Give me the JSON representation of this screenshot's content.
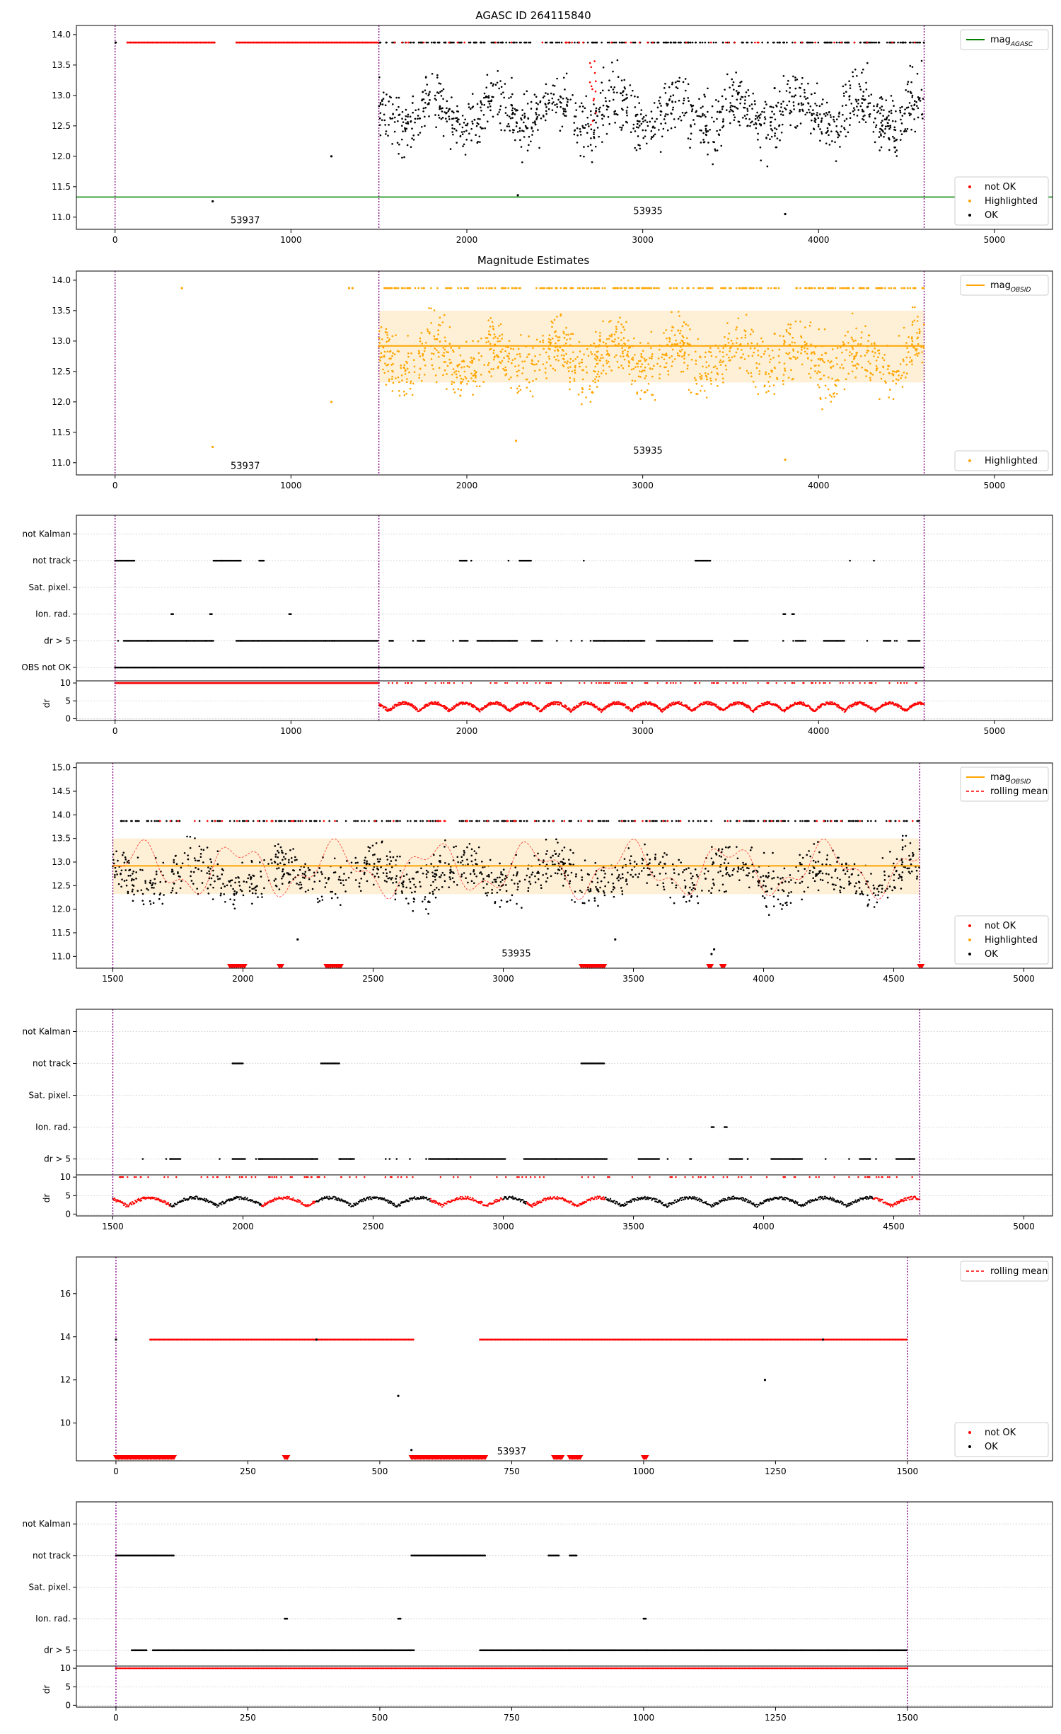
{
  "figure_title": "AGASC ID 264115840",
  "colors": {
    "ok": "#000000",
    "not_ok": "#ff0000",
    "highlighted": "#ffa500",
    "agasc_line": "#008000",
    "obsid_line": "#ffa500",
    "band": "#fdebc8",
    "rolling": "#ff0000",
    "boundary": "#800080"
  },
  "row_labels": [
    "not Kalman",
    "not track",
    "Sat. pixel.",
    "Ion. rad.",
    "dr > 5",
    "OBS not OK"
  ],
  "dr_label": "dr",
  "legends": {
    "mag_agasc": "mag_AGASC",
    "mag_obsid": "mag_OBSID",
    "not_ok": "not OK",
    "highlighted": "Highlighted",
    "ok": "OK",
    "rolling_mean": "rolling mean"
  },
  "chart_data": [
    {
      "id": "p1",
      "type": "scatter",
      "title": "AGASC ID 264115840",
      "xlim": [
        -220,
        5330
      ],
      "ylim": [
        10.8,
        14.15
      ],
      "xticks": [
        0,
        1000,
        2000,
        3000,
        4000,
        5000
      ],
      "yticks": [
        11.0,
        11.5,
        12.0,
        12.5,
        13.0,
        13.5,
        14.0
      ],
      "ytick_decimals": 1,
      "agasc_mag": 11.33,
      "obsid_boundaries": [
        0,
        1500,
        4600
      ],
      "obsid_labels": [
        {
          "text": "53937",
          "x": 740,
          "y": 10.9
        },
        {
          "text": "53935",
          "x": 3030,
          "y": 11.05
        }
      ],
      "seg_a": {
        "x0": 0,
        "x1": 1500,
        "notok_ranges": [
          [
            70,
            570
          ],
          [
            690,
            1500
          ]
        ],
        "notok_y": 13.87
      },
      "seg_b": {
        "x0": 1500,
        "x1": 4600,
        "center": 12.72,
        "spread": 0.42,
        "top_y": 13.87
      },
      "outliers": [
        {
          "x": 3,
          "y": 13.87
        },
        {
          "x": 555,
          "y": 11.26
        },
        {
          "x": 1230,
          "y": 12.0
        },
        {
          "x": 2290,
          "y": 11.36
        },
        {
          "x": 3810,
          "y": 11.05
        },
        {
          "x": 3750,
          "y": 13.12
        }
      ],
      "legend_top": [
        "mag_AGASC"
      ],
      "legend_bottom": [
        "not OK",
        "Highlighted",
        "OK"
      ]
    },
    {
      "id": "p2",
      "type": "scatter",
      "title": "Magnitude Estimates",
      "xlim": [
        -220,
        5330
      ],
      "ylim": [
        10.8,
        14.15
      ],
      "xticks": [
        0,
        1000,
        2000,
        3000,
        4000,
        5000
      ],
      "yticks": [
        11.0,
        11.5,
        12.0,
        12.5,
        13.0,
        13.5,
        14.0
      ],
      "ytick_decimals": 1,
      "obsid_mag": 12.92,
      "obsid_band": [
        12.32,
        13.5
      ],
      "obsid_span": [
        1500,
        4600
      ],
      "obsid_boundaries": [
        0,
        1500,
        4600
      ],
      "obsid_labels": [
        {
          "text": "53937",
          "x": 740,
          "y": 10.9
        },
        {
          "text": "53935",
          "x": 3030,
          "y": 11.15
        }
      ],
      "seg_b": {
        "x0": 1500,
        "x1": 4600,
        "center": 12.72,
        "spread": 0.42,
        "top_y": 13.87
      },
      "outliers": [
        {
          "x": 380,
          "y": 13.87
        },
        {
          "x": 555,
          "y": 11.26
        },
        {
          "x": 1230,
          "y": 12.0
        },
        {
          "x": 1330,
          "y": 13.87
        },
        {
          "x": 1350,
          "y": 13.87
        },
        {
          "x": 2280,
          "y": 11.36
        },
        {
          "x": 3810,
          "y": 11.05
        },
        {
          "x": 3750,
          "y": 13.12
        }
      ],
      "legend_top": [
        "mag_OBSID"
      ],
      "legend_bottom": [
        "Highlighted"
      ]
    },
    {
      "id": "p3",
      "type": "flags",
      "xlim": [
        -220,
        5330
      ],
      "xticks": [
        0,
        1000,
        2000,
        3000,
        4000,
        5000
      ],
      "rows": [
        "not Kalman",
        "not track",
        "Sat. pixel.",
        "Ion. rad.",
        "dr > 5",
        "OBS not OK"
      ],
      "obsid_boundaries": [
        0,
        1500,
        4600
      ],
      "flag_ranges": {
        "not track": [
          [
            0,
            110
          ],
          [
            560,
            720
          ],
          [
            820,
            850
          ],
          [
            1960,
            2000
          ],
          [
            2300,
            2370
          ],
          [
            3300,
            3390
          ]
        ],
        "Ion. rad.": [
          [
            320,
            330
          ],
          [
            540,
            550
          ],
          [
            990,
            1000
          ],
          [
            3800,
            3810
          ],
          [
            3850,
            3860
          ]
        ],
        "dr > 5": [
          [
            50,
            560
          ],
          [
            690,
            1500
          ],
          [
            1560,
            1580
          ],
          [
            1720,
            1760
          ],
          [
            1960,
            2010
          ],
          [
            2060,
            2290
          ],
          [
            2370,
            2430
          ],
          [
            2720,
            3010
          ],
          [
            3080,
            3400
          ],
          [
            3520,
            3600
          ],
          [
            3870,
            3920
          ],
          [
            4030,
            4150
          ],
          [
            4370,
            4410
          ],
          [
            4510,
            4580
          ]
        ],
        "OBS not OK": [
          [
            0,
            4600
          ]
        ]
      },
      "scatter_flags": {
        "dr > 5": 40,
        "not track": 6
      },
      "dr": {
        "ylim": [
          -0.5,
          10.6
        ],
        "yticks": [
          0,
          5,
          10
        ],
        "seg_a_x": [
          0,
          1500
        ],
        "seg_b_x": [
          1500,
          4600
        ]
      }
    },
    {
      "id": "p4",
      "type": "scatter",
      "xlim": [
        1360,
        5110
      ],
      "ylim": [
        10.75,
        15.1
      ],
      "xticks": [
        1500,
        2000,
        2500,
        3000,
        3500,
        4000,
        4500,
        5000
      ],
      "yticks": [
        11.0,
        11.5,
        12.0,
        12.5,
        13.0,
        13.5,
        14.0,
        14.5,
        15.0
      ],
      "ytick_decimals": 1,
      "obsid_mag": 12.92,
      "obsid_band": [
        12.32,
        13.5
      ],
      "obsid_span": [
        1500,
        4600
      ],
      "obsid_boundaries": [
        1500,
        4600
      ],
      "obsid_labels": [
        {
          "text": "53935",
          "x": 3050,
          "y": 11.0
        }
      ],
      "seg_b": {
        "x0": 1500,
        "x1": 4600,
        "center": 12.72,
        "spread": 0.42,
        "top_y": 13.87
      },
      "triangle_ranges": [
        [
          1950,
          2010
        ],
        [
          2140,
          2150
        ],
        [
          2320,
          2380
        ],
        [
          3300,
          3390
        ],
        [
          3790,
          3800
        ],
        [
          3840,
          3850
        ],
        [
          4600,
          4610
        ]
      ],
      "outliers": [
        {
          "x": 2210,
          "y": 11.36
        },
        {
          "x": 3430,
          "y": 11.36
        },
        {
          "x": 3800,
          "y": 11.05
        },
        {
          "x": 3810,
          "y": 11.15
        }
      ],
      "legend_top": [
        "mag_OBSID",
        "rolling mean"
      ],
      "legend_bottom": [
        "not OK",
        "Highlighted",
        "OK"
      ]
    },
    {
      "id": "p5",
      "type": "flags",
      "xlim": [
        1360,
        5110
      ],
      "xticks": [
        1500,
        2000,
        2500,
        3000,
        3500,
        4000,
        4500,
        5000
      ],
      "rows": [
        "not Kalman",
        "not track",
        "Sat. pixel.",
        "Ion. rad.",
        "dr > 5"
      ],
      "obsid_boundaries": [
        1500,
        4600
      ],
      "flag_ranges": {
        "not track": [
          [
            1960,
            2000
          ],
          [
            2300,
            2370
          ],
          [
            3300,
            3390
          ]
        ],
        "Ion. rad.": [
          [
            3800,
            3810
          ],
          [
            3850,
            3860
          ]
        ],
        "dr > 5": [
          [
            1720,
            1760
          ],
          [
            1960,
            2010
          ],
          [
            2060,
            2290
          ],
          [
            2370,
            2430
          ],
          [
            2720,
            3010
          ],
          [
            3080,
            3400
          ],
          [
            3520,
            3600
          ],
          [
            3870,
            3920
          ],
          [
            4030,
            4150
          ],
          [
            4370,
            4410
          ],
          [
            4510,
            4580
          ]
        ]
      },
      "scatter_flags": {
        "dr > 5": 30
      },
      "dr": {
        "ylim": [
          -0.5,
          10.6
        ],
        "yticks": [
          0,
          5,
          10
        ],
        "seg_b_x": [
          1500,
          4600
        ]
      }
    },
    {
      "id": "p6",
      "type": "scatter",
      "xlim": [
        -75,
        1775
      ],
      "ylim": [
        8.25,
        17.7
      ],
      "xticks": [
        0,
        250,
        500,
        750,
        1000,
        1250,
        1500
      ],
      "yticks": [
        10,
        12,
        14,
        16
      ],
      "ytick_decimals": 0,
      "obsid_boundaries": [
        0,
        1500
      ],
      "obsid_labels": [
        {
          "text": "53937",
          "x": 750,
          "y": 8.55
        }
      ],
      "notok_lines": [
        [
          65,
          565
        ],
        [
          690,
          1500
        ]
      ],
      "notok_y": 13.87,
      "bottom_ranges": [
        [
          0,
          110
        ],
        [
          560,
          700
        ],
        [
          830,
          845
        ],
        [
          860,
          880
        ],
        [
          1000,
          1005
        ],
        [
          320,
          325
        ]
      ],
      "outliers": [
        {
          "x": 535,
          "y": 11.26
        },
        {
          "x": 1230,
          "y": 12.0
        },
        {
          "x": 380,
          "y": 13.87
        },
        {
          "x": 1340,
          "y": 13.87
        },
        {
          "x": 0,
          "y": 13.87
        },
        {
          "x": 560,
          "y": 8.75
        }
      ],
      "legend_top": [
        "rolling mean"
      ],
      "legend_bottom": [
        "not OK",
        "OK"
      ]
    },
    {
      "id": "p7",
      "type": "flags",
      "xlim": [
        -75,
        1775
      ],
      "xticks": [
        0,
        250,
        500,
        750,
        1000,
        1250,
        1500
      ],
      "rows": [
        "not Kalman",
        "not track",
        "Sat. pixel.",
        "Ion. rad.",
        "dr > 5"
      ],
      "obsid_boundaries": [
        0,
        1500
      ],
      "flag_ranges": {
        "not track": [
          [
            0,
            110
          ],
          [
            560,
            700
          ],
          [
            820,
            840
          ],
          [
            860,
            875
          ]
        ],
        "Ion. rad.": [
          [
            320,
            325
          ],
          [
            535,
            540
          ],
          [
            1000,
            1005
          ]
        ],
        "dr > 5": [
          [
            30,
            60
          ],
          [
            70,
            110
          ],
          [
            110,
            565
          ],
          [
            690,
            1500
          ]
        ]
      },
      "scatter_flags": {},
      "dr": {
        "ylim": [
          -0.5,
          10.6
        ],
        "yticks": [
          0,
          5,
          10
        ],
        "seg_a_x": [
          0,
          1500
        ]
      }
    }
  ]
}
